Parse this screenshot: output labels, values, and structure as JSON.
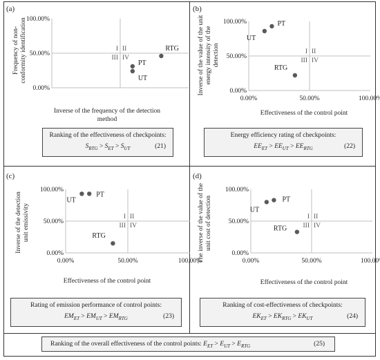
{
  "panels": [
    {
      "letter": "(a)",
      "ylabel": "Frequency of non-conformity identification",
      "xlabel": "Inverse of the frequency of the detection method",
      "box_title": "Ranking of the effectiveness of checkpoints:",
      "box_formula": "Sₙ > Sₙ > Sₙ",
      "formula_terms": [
        {
          "base": "S",
          "sub": "RTG"
        },
        {
          "base": "S",
          "sub": "ET"
        },
        {
          "base": "S",
          "sub": "UT"
        }
      ],
      "box_number": "(21)"
    },
    {
      "letter": "(b)",
      "ylabel": "Inverse of the value of the unit energy intensity of the detection",
      "xlabel": "Effectiveness of the control point",
      "box_title": "Energy efficiency rating of checkpoints:",
      "formula_terms": [
        {
          "base": "EE",
          "sub": "ET"
        },
        {
          "base": "EE",
          "sub": "UT"
        },
        {
          "base": "EE",
          "sub": "RTG"
        }
      ],
      "box_number": "(22)"
    },
    {
      "letter": "(c)",
      "ylabel": "Inverse of the detection unit emissivity",
      "xlabel": "Effectiveness of the control point",
      "box_title": "Rating of emission performance of control points:",
      "formula_terms": [
        {
          "base": "EM",
          "sub": "ET"
        },
        {
          "base": "EM",
          "sub": "UT"
        },
        {
          "base": "EM",
          "sub": "RTG"
        }
      ],
      "box_number": "(23)"
    },
    {
      "letter": "(d)",
      "ylabel": "The inverse of the value of the unit cost of detection",
      "xlabel": "Effectiveness of the control point",
      "box_title": "Ranking of cost-effectiveness of checkpoints:",
      "formula_terms": [
        {
          "base": "EK",
          "sub": "ET"
        },
        {
          "base": "EK",
          "sub": "RTG"
        },
        {
          "base": "EK",
          "sub": "UT"
        }
      ],
      "box_number": "(24)"
    }
  ],
  "quadrant_labels": [
    "I",
    "II",
    "III",
    "IV"
  ],
  "bottom": {
    "text": "Ranking of the overall effectiveness of the control points:",
    "formula_terms": [
      {
        "base": "E",
        "sub": "ET"
      },
      {
        "base": "E",
        "sub": "UT"
      },
      {
        "base": "E",
        "sub": "RTG"
      }
    ],
    "number": "(25)"
  },
  "colors": {
    "marker": "#5a5a5a",
    "axis": "#bfbfbf",
    "border": "#333333",
    "box_fill": "#f2f2f2"
  },
  "chart_data": [
    {
      "type": "scatter",
      "xlim": [
        0,
        1
      ],
      "ylim": [
        0,
        1
      ],
      "x_ticks": [],
      "y_ticks": [
        "0.00%",
        "50.00%",
        "100.00%"
      ],
      "points": [
        {
          "label": "RTG",
          "x": 0.8,
          "y": 0.46
        },
        {
          "label": "PT",
          "x": 0.59,
          "y": 0.31
        },
        {
          "label": "UT",
          "x": 0.59,
          "y": 0.24
        }
      ]
    },
    {
      "type": "scatter",
      "xlim": [
        0,
        1
      ],
      "ylim": [
        0,
        1
      ],
      "x_ticks": [
        "0.00%",
        "50.00%",
        "100.00%"
      ],
      "y_ticks": [
        "0.00%",
        "50.00%",
        "100.00%"
      ],
      "points": [
        {
          "label": "PT",
          "x": 0.19,
          "y": 0.93
        },
        {
          "label": "UT",
          "x": 0.13,
          "y": 0.86
        },
        {
          "label": "RTG",
          "x": 0.38,
          "y": 0.22
        }
      ]
    },
    {
      "type": "scatter",
      "xlim": [
        0,
        1
      ],
      "ylim": [
        0,
        1
      ],
      "x_ticks": [
        "0.00%",
        "50.00%",
        "100.00%"
      ],
      "y_ticks": [
        "0.00%",
        "50.00%",
        "100.00%"
      ],
      "points": [
        {
          "label": "PT",
          "x": 0.19,
          "y": 0.93
        },
        {
          "label": "UT",
          "x": 0.13,
          "y": 0.93
        },
        {
          "label": "RTG",
          "x": 0.38,
          "y": 0.15
        }
      ]
    },
    {
      "type": "scatter",
      "xlim": [
        0,
        1
      ],
      "ylim": [
        0,
        1
      ],
      "x_ticks": [
        "0.00%",
        "50.00%",
        "100.00%"
      ],
      "y_ticks": [
        "0.00%",
        "50.00%",
        "100.00%"
      ],
      "points": [
        {
          "label": "PT",
          "x": 0.19,
          "y": 0.83
        },
        {
          "label": "UT",
          "x": 0.13,
          "y": 0.8
        },
        {
          "label": "RTG",
          "x": 0.38,
          "y": 0.33
        }
      ]
    }
  ]
}
